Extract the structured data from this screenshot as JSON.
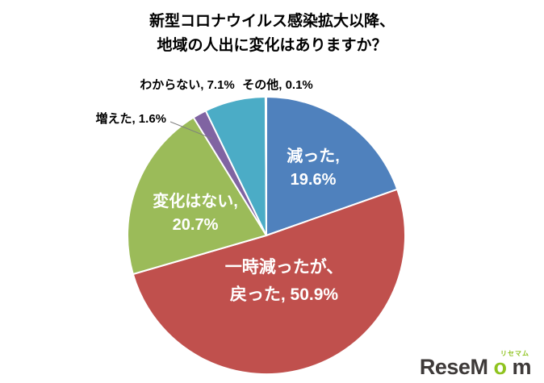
{
  "title": {
    "line1": "新型コロナウイルス感染拡大以降、",
    "line2": "地域の人出に変化はありますか？"
  },
  "chart_data": {
    "type": "pie",
    "title": "新型コロナウイルス感染拡大以降、地域の人出に変化はありますか？",
    "unit": "%",
    "start_angle_deg": 0,
    "direction": "clockwise",
    "legend": "none",
    "slices": [
      {
        "id": "hetta",
        "label": "減った",
        "value": 19.6,
        "color": "#4F81BD",
        "label_placement": "inside",
        "display_lines": [
          "減った,",
          "19.6%"
        ]
      },
      {
        "id": "ichiji-modotta",
        "label": "一時減ったが、戻った",
        "value": 50.9,
        "color": "#C0504D",
        "label_placement": "inside",
        "display_lines": [
          "一時減ったが、",
          "戻った, 50.9%"
        ]
      },
      {
        "id": "henka-nai",
        "label": "変化はない",
        "value": 20.7,
        "color": "#9BBB59",
        "label_placement": "inside",
        "display_lines": [
          "変化はない,",
          "20.7%"
        ]
      },
      {
        "id": "fueta",
        "label": "増えた",
        "value": 1.6,
        "color": "#8064A2",
        "label_placement": "outside",
        "display_lines": [
          "増えた, 1.6%"
        ]
      },
      {
        "id": "wakaranai",
        "label": "わからない",
        "value": 7.1,
        "color": "#4BACC6",
        "label_placement": "outside",
        "display_lines": [
          "わからない, 7.1%"
        ]
      },
      {
        "id": "sonota",
        "label": "その他",
        "value": 0.1,
        "color": "#F79646",
        "label_placement": "outside",
        "display_lines": [
          "その他, 0.1%"
        ]
      }
    ],
    "label_colors": {
      "inside": "#ffffff",
      "outside": "#000000"
    }
  },
  "logo": {
    "part1": "ReseM",
    "part2": "o",
    "part3": "m",
    "ruby": "リセマム"
  }
}
